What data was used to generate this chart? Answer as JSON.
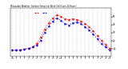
{
  "title": "Milwaukee Weather  Outdoor Temp (vs) Wind Chill (Last 24 Hours)",
  "outdoor_temp": [
    8,
    8,
    8,
    9,
    10,
    12,
    16,
    24,
    34,
    42,
    48,
    52,
    50,
    47,
    46,
    47,
    46,
    44,
    41,
    37,
    32,
    26,
    20,
    15,
    10
  ],
  "wind_chill": [
    8,
    8,
    8,
    9,
    10,
    12,
    14,
    20,
    30,
    38,
    44,
    48,
    45,
    41,
    39,
    42,
    43,
    41,
    37,
    33,
    28,
    22,
    16,
    12,
    8
  ],
  "x_labels": [
    "12a",
    "1",
    "2",
    "3",
    "4",
    "5",
    "6",
    "7",
    "8",
    "9",
    "10",
    "11",
    "12p",
    "1",
    "2",
    "3",
    "4",
    "5",
    "6",
    "7",
    "8",
    "9",
    "10",
    "11",
    "12a"
  ],
  "temp_color": "#ff0000",
  "chill_color": "#0000ff",
  "background": "#ffffff",
  "grid_color": "#808080",
  "ylim": [
    0,
    60
  ],
  "ytick_vals": [
    10,
    20,
    30,
    40,
    50
  ],
  "ytick_labels": [
    "10",
    "20",
    "30",
    "40",
    "50"
  ]
}
